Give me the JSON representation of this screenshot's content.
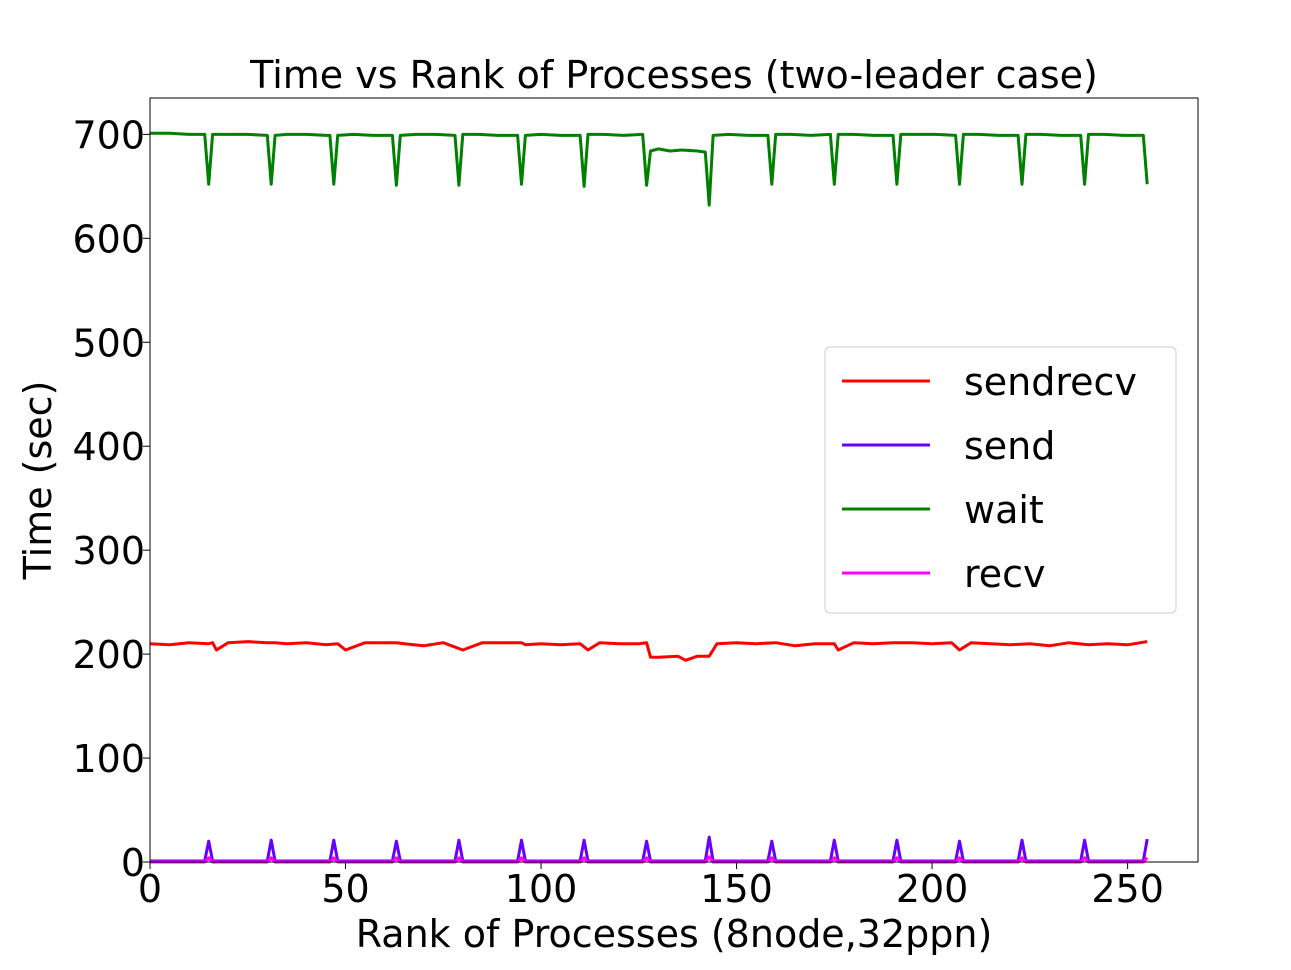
{
  "chart_data": {
    "type": "line",
    "title": "Time vs Rank of Processes (two-leader case)",
    "xlabel": "Rank of Processes (8node,32ppn)",
    "ylabel": "Time (sec)",
    "xlim": [
      0,
      268
    ],
    "ylim": [
      0,
      735
    ],
    "xticks": [
      0,
      50,
      100,
      150,
      200,
      250
    ],
    "yticks": [
      0,
      100,
      200,
      300,
      400,
      500,
      600,
      700
    ],
    "xtick_labels": [
      "0",
      "50",
      "100",
      "150",
      "200",
      "250"
    ],
    "ytick_labels": [
      "0",
      "100",
      "200",
      "300",
      "400",
      "500",
      "600",
      "700"
    ],
    "grid": false,
    "legend_position": "center-right",
    "series": [
      {
        "name": "sendrecv",
        "color": "#ff0000",
        "x": [
          0,
          5,
          10,
          15,
          16,
          17,
          20,
          25,
          30,
          32,
          35,
          40,
          45,
          48,
          50,
          55,
          60,
          63,
          65,
          70,
          75,
          80,
          85,
          90,
          95,
          96,
          100,
          105,
          110,
          112,
          115,
          120,
          125,
          127,
          128,
          130,
          135,
          137,
          140,
          143,
          144,
          145,
          150,
          155,
          160,
          165,
          170,
          175,
          176,
          180,
          185,
          190,
          195,
          200,
          205,
          207,
          210,
          215,
          220,
          225,
          230,
          235,
          240,
          245,
          250,
          255
        ],
        "y": [
          210,
          209,
          211,
          210,
          211,
          204,
          211,
          212,
          211,
          211,
          210,
          211,
          209,
          210,
          204,
          211,
          211,
          211,
          210,
          208,
          211,
          204,
          211,
          211,
          211,
          209,
          210,
          209,
          210,
          204,
          211,
          210,
          210,
          211,
          197,
          197,
          198,
          194,
          198,
          198,
          204,
          210,
          211,
          210,
          211,
          208,
          210,
          210,
          204,
          211,
          210,
          211,
          211,
          210,
          211,
          204,
          211,
          210,
          209,
          210,
          208,
          211,
          209,
          210,
          209,
          212
        ]
      },
      {
        "name": "send",
        "color": "#6600ff",
        "x": [
          0,
          14,
          15,
          16,
          30,
          31,
          32,
          46,
          47,
          48,
          62,
          63,
          64,
          78,
          79,
          80,
          94,
          95,
          96,
          110,
          111,
          112,
          126,
          127,
          128,
          142,
          143,
          144,
          158,
          159,
          160,
          174,
          175,
          176,
          190,
          191,
          192,
          206,
          207,
          208,
          222,
          223,
          224,
          238,
          239,
          240,
          254,
          255
        ],
        "y": [
          1,
          1,
          20,
          1,
          1,
          21,
          1,
          1,
          21,
          1,
          1,
          20,
          1,
          1,
          21,
          1,
          1,
          21,
          1,
          1,
          21,
          1,
          1,
          20,
          1,
          1,
          24,
          1,
          1,
          20,
          1,
          1,
          21,
          1,
          1,
          21,
          1,
          1,
          20,
          1,
          1,
          21,
          1,
          1,
          21,
          1,
          1,
          22
        ]
      },
      {
        "name": "wait",
        "color": "#008000",
        "x": [
          0,
          5,
          10,
          14,
          15,
          16,
          20,
          25,
          30,
          31,
          32,
          35,
          40,
          45,
          46,
          47,
          48,
          52,
          57,
          62,
          63,
          64,
          68,
          73,
          78,
          79,
          80,
          84,
          89,
          94,
          95,
          96,
          100,
          105,
          110,
          111,
          112,
          116,
          121,
          126,
          127,
          128,
          130,
          133,
          136,
          140,
          142,
          143,
          144,
          148,
          153,
          158,
          159,
          160,
          164,
          169,
          174,
          175,
          176,
          180,
          185,
          190,
          191,
          192,
          196,
          201,
          206,
          207,
          208,
          212,
          217,
          222,
          223,
          224,
          228,
          233,
          238,
          239,
          240,
          244,
          249,
          254,
          255
        ],
        "y": [
          701,
          701,
          700,
          700,
          652,
          700,
          700,
          700,
          699,
          652,
          699,
          700,
          700,
          699,
          699,
          652,
          699,
          700,
          699,
          699,
          651,
          699,
          700,
          700,
          699,
          651,
          700,
          700,
          699,
          699,
          652,
          699,
          700,
          699,
          699,
          650,
          700,
          700,
          699,
          700,
          651,
          684,
          686,
          684,
          685,
          684,
          683,
          632,
          699,
          700,
          699,
          699,
          652,
          700,
          700,
          699,
          700,
          652,
          700,
          700,
          699,
          699,
          652,
          700,
          700,
          700,
          699,
          652,
          700,
          700,
          699,
          699,
          652,
          700,
          700,
          699,
          699,
          652,
          700,
          700,
          699,
          699,
          652
        ]
      },
      {
        "name": "recv",
        "color": "#ff00ff",
        "x": [
          0,
          14,
          15,
          16,
          30,
          31,
          32,
          46,
          47,
          48,
          62,
          63,
          64,
          78,
          79,
          80,
          94,
          95,
          96,
          110,
          111,
          112,
          126,
          127,
          128,
          142,
          143,
          144,
          158,
          159,
          160,
          174,
          175,
          176,
          190,
          191,
          192,
          206,
          207,
          208,
          222,
          223,
          224,
          238,
          239,
          240,
          254,
          255
        ],
        "y": [
          0,
          0,
          4,
          0,
          0,
          4,
          0,
          0,
          4,
          0,
          0,
          4,
          0,
          0,
          4,
          0,
          0,
          4,
          0,
          0,
          4,
          0,
          0,
          4,
          0,
          0,
          5,
          0,
          0,
          4,
          0,
          0,
          4,
          0,
          0,
          4,
          0,
          0,
          4,
          0,
          0,
          4,
          0,
          0,
          4,
          0,
          0,
          4
        ]
      }
    ]
  }
}
